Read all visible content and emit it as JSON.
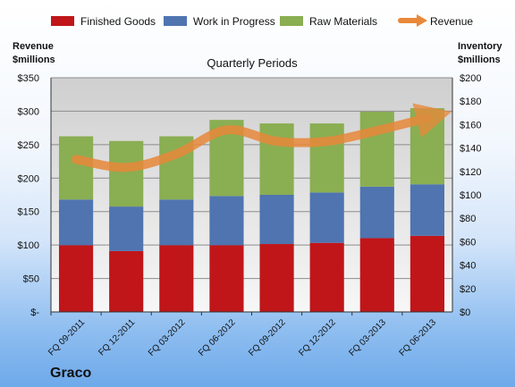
{
  "chart_data": {
    "type": "bar",
    "title": "Quarterly Periods",
    "company": "Graco",
    "left_axis_title": [
      "Revenue",
      "$millions"
    ],
    "right_axis_title": [
      "Inventory",
      "$millions"
    ],
    "categories": [
      "FQ 09-2011",
      "FQ 12-2011",
      "FQ 03-2012",
      "FQ 06-2012",
      "FQ 09-2012",
      "FQ 12-2012",
      "FQ 03-2013",
      "FQ 06-2013"
    ],
    "stacked": true,
    "series": [
      {
        "name": "Finished Goods",
        "axis": "right",
        "color": "#c0161a",
        "values": [
          57,
          52,
          57,
          57,
          58,
          59,
          63,
          65
        ]
      },
      {
        "name": "Work in Progress",
        "axis": "right",
        "color": "#4f74b0",
        "values": [
          39,
          38,
          39,
          42,
          42,
          43,
          44,
          44
        ]
      },
      {
        "name": "Raw Materials",
        "axis": "right",
        "color": "#8aae52",
        "values": [
          54,
          56,
          54,
          65,
          61,
          59,
          64,
          65
        ]
      }
    ],
    "line_series": {
      "name": "Revenue",
      "axis": "left",
      "color": "#e8883a",
      "values": [
        228,
        216,
        236,
        272,
        255,
        255,
        271,
        290
      ]
    },
    "left_axis": {
      "min": 0,
      "max": 350,
      "step": 50,
      "tick_labels": [
        "$-",
        "$50",
        "$100",
        "$150",
        "$200",
        "$250",
        "$300",
        "$350"
      ]
    },
    "right_axis": {
      "min": 0,
      "max": 200,
      "step": 20,
      "tick_labels": [
        "$0",
        "$20",
        "$40",
        "$60",
        "$80",
        "$100",
        "$120",
        "$140",
        "$160",
        "$180",
        "$200"
      ]
    },
    "legend_position": "top",
    "grid": true
  }
}
